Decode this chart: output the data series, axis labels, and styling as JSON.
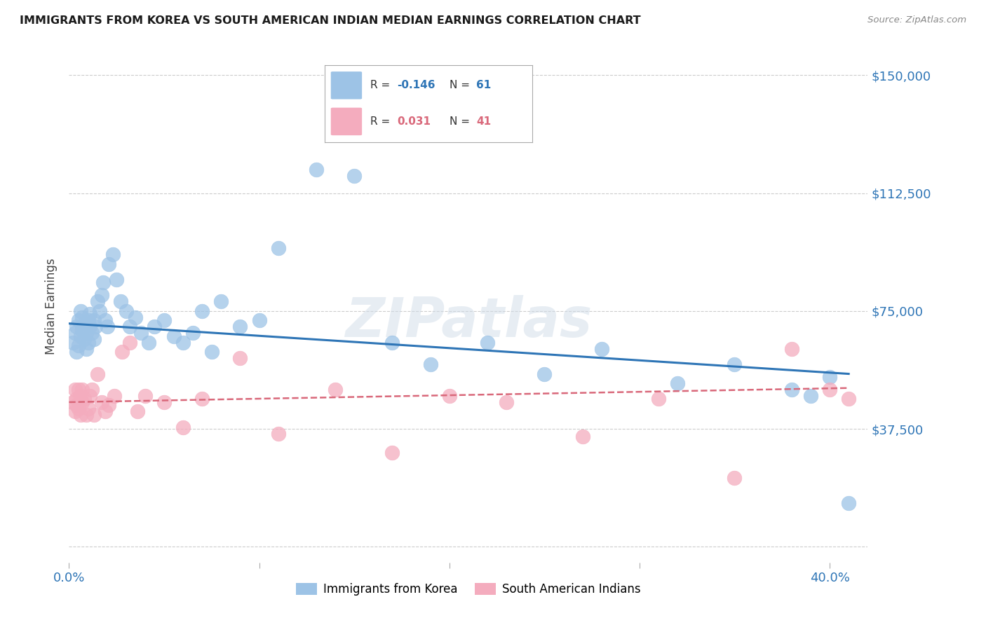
{
  "title": "IMMIGRANTS FROM KOREA VS SOUTH AMERICAN INDIAN MEDIAN EARNINGS CORRELATION CHART",
  "source": "Source: ZipAtlas.com",
  "ylabel": "Median Earnings",
  "y_ticks": [
    0,
    37500,
    75000,
    112500,
    150000
  ],
  "y_tick_labels": [
    "",
    "$37,500",
    "$75,000",
    "$112,500",
    "$150,000"
  ],
  "xlim": [
    0.0,
    0.42
  ],
  "ylim": [
    -5000,
    158000
  ],
  "watermark": "ZIPatlas",
  "legend_korea_R": "-0.146",
  "legend_korea_N": "61",
  "legend_india_R": "0.031",
  "legend_india_N": "41",
  "korea_color": "#9dc3e6",
  "india_color": "#f4acbe",
  "trend_korea_color": "#2e75b6",
  "trend_india_color": "#d9687a",
  "background_color": "#ffffff",
  "grid_color": "#c0c0c0",
  "title_color": "#1a1a1a",
  "axis_label_color": "#2e75b6",
  "korea_x": [
    0.002,
    0.003,
    0.004,
    0.004,
    0.005,
    0.005,
    0.006,
    0.006,
    0.007,
    0.007,
    0.008,
    0.008,
    0.009,
    0.009,
    0.01,
    0.01,
    0.011,
    0.011,
    0.012,
    0.013,
    0.013,
    0.014,
    0.015,
    0.016,
    0.017,
    0.018,
    0.019,
    0.02,
    0.021,
    0.023,
    0.025,
    0.027,
    0.03,
    0.032,
    0.035,
    0.038,
    0.042,
    0.045,
    0.05,
    0.055,
    0.06,
    0.065,
    0.07,
    0.075,
    0.08,
    0.09,
    0.1,
    0.11,
    0.13,
    0.15,
    0.17,
    0.19,
    0.22,
    0.25,
    0.28,
    0.32,
    0.35,
    0.38,
    0.39,
    0.4,
    0.41
  ],
  "korea_y": [
    65000,
    68000,
    62000,
    70000,
    64000,
    72000,
    67000,
    75000,
    69000,
    73000,
    66000,
    71000,
    63000,
    68000,
    72000,
    65000,
    70000,
    74000,
    68000,
    66000,
    72000,
    70000,
    78000,
    75000,
    80000,
    84000,
    72000,
    70000,
    90000,
    93000,
    85000,
    78000,
    75000,
    70000,
    73000,
    68000,
    65000,
    70000,
    72000,
    67000,
    65000,
    68000,
    75000,
    62000,
    78000,
    70000,
    72000,
    95000,
    120000,
    118000,
    65000,
    58000,
    65000,
    55000,
    63000,
    52000,
    58000,
    50000,
    48000,
    54000,
    14000
  ],
  "india_x": [
    0.002,
    0.003,
    0.003,
    0.004,
    0.004,
    0.005,
    0.005,
    0.006,
    0.006,
    0.007,
    0.007,
    0.008,
    0.009,
    0.01,
    0.011,
    0.012,
    0.013,
    0.015,
    0.017,
    0.019,
    0.021,
    0.024,
    0.028,
    0.032,
    0.036,
    0.04,
    0.05,
    0.06,
    0.07,
    0.09,
    0.11,
    0.14,
    0.17,
    0.2,
    0.23,
    0.27,
    0.31,
    0.35,
    0.38,
    0.4,
    0.41
  ],
  "india_y": [
    46000,
    43000,
    50000,
    47000,
    45000,
    44000,
    50000,
    48000,
    42000,
    46000,
    50000,
    47000,
    42000,
    44000,
    48000,
    50000,
    42000,
    55000,
    46000,
    43000,
    45000,
    48000,
    62000,
    65000,
    43000,
    48000,
    46000,
    38000,
    47000,
    60000,
    36000,
    50000,
    30000,
    48000,
    46000,
    35000,
    47000,
    22000,
    63000,
    50000,
    47000
  ],
  "korea_trend_x0": 0.0,
  "korea_trend_y0": 71000,
  "korea_trend_x1": 0.41,
  "korea_trend_y1": 55000,
  "india_trend_x0": 0.0,
  "india_trend_y0": 46000,
  "india_trend_x1": 0.41,
  "india_trend_y1": 50500
}
